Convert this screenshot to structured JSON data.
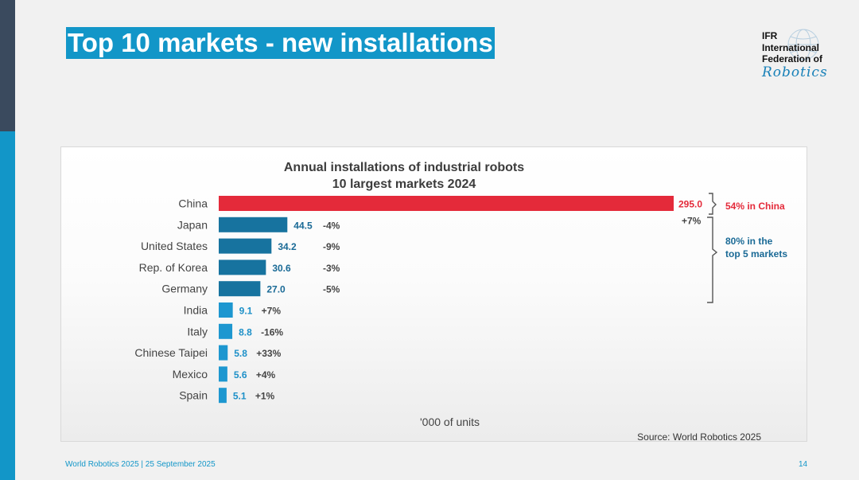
{
  "slide": {
    "title": "Top 10 markets - new installations",
    "footer": "World Robotics 2025  | 25 September 2025",
    "page_number": "14"
  },
  "logo": {
    "line1": "IFR",
    "line2": "International",
    "line3": "Federation of",
    "script": "Robotics"
  },
  "chart_data": {
    "type": "bar",
    "orientation": "horizontal",
    "title": "Annual installations of industrial robots",
    "subtitle": "10 largest markets 2024",
    "unit_label": "'000 of units",
    "source": "Source: World Robotics 2025",
    "categories": [
      "China",
      "Japan",
      "United States",
      "Rep. of Korea",
      "Germany",
      "India",
      "Italy",
      "Chinese Taipei",
      "Mexico",
      "Spain"
    ],
    "values": [
      295.0,
      44.5,
      34.2,
      30.6,
      27.0,
      9.1,
      8.8,
      5.8,
      5.6,
      5.1
    ],
    "value_labels": [
      "295.0",
      "44.5",
      "34.2",
      "30.6",
      "27.0",
      "9.1",
      "8.8",
      "5.8",
      "5.6",
      "5.1"
    ],
    "changes": [
      "+7%",
      "-4%",
      "-9%",
      "-3%",
      "-5%",
      "+7%",
      "-16%",
      "+33%",
      "+4%",
      "+1%"
    ],
    "xlim": [
      0,
      295
    ],
    "colors": {
      "china": "#e42a3a",
      "top5": "#17739f",
      "others": "#1d97d0",
      "label_top5": "#1a6a96",
      "label_others": "#1d90c8"
    },
    "annotations": {
      "china_share": "54% in China",
      "top5_share_line1": "80% in the",
      "top5_share_line2": "top 5 markets"
    }
  }
}
